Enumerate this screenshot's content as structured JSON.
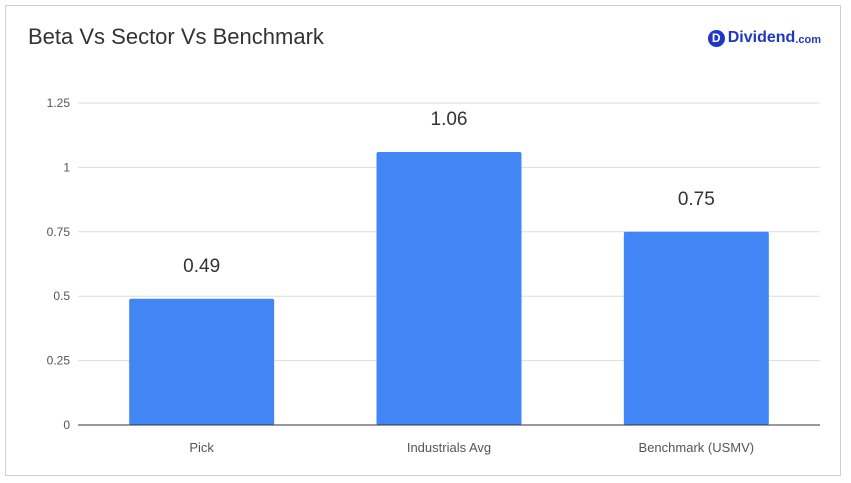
{
  "logo": {
    "badge": "D",
    "name": "Dividend",
    "suffix": ".com"
  },
  "colors": {
    "bar": "#4285f4",
    "grid": "#dddddd",
    "axis": "#333333",
    "brand": "#1e37c8"
  },
  "chart_data": {
    "type": "bar",
    "title": "Beta Vs Sector Vs Benchmark",
    "categories": [
      "Pick",
      "Industrials Avg",
      "Benchmark (USMV)"
    ],
    "values": [
      0.49,
      1.06,
      0.75
    ],
    "data_labels": [
      "0.49",
      "1.06",
      "0.75"
    ],
    "yticks": [
      "0",
      "0.25",
      "0.5",
      "0.75",
      "1",
      "1.25"
    ],
    "ylim": [
      0,
      1.25
    ],
    "xlabel": "",
    "ylabel": "",
    "grid": true,
    "legend": "none"
  }
}
